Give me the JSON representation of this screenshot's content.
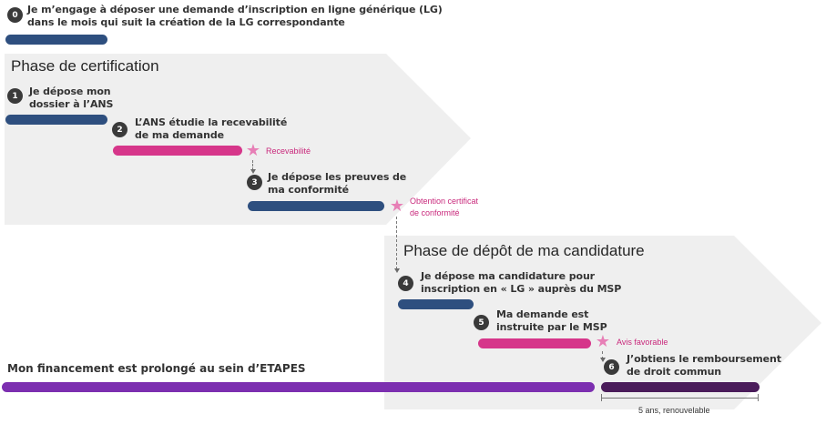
{
  "colors": {
    "phase_background": "#efefef",
    "step_bar": "#2e4f7f",
    "review_bar": "#d6368a",
    "financing_bar": "#7c2fb0",
    "reimbursement_bar": "#4a1c5a",
    "milestone_star": "#e77fb6",
    "milestone_text": "#c9297c"
  },
  "step0": {
    "number": "0",
    "line1": "Je m’engage à déposer une demande d’inscription en ligne générique (LG)",
    "line2": "dans le mois qui suit la création de la LG correspondante"
  },
  "phase_certification": {
    "title": "Phase de certification",
    "step1": {
      "number": "1",
      "line1": "Je dépose mon",
      "line2": "dossier à l’ANS"
    },
    "step2": {
      "number": "2",
      "line1": "L’ANS étudie la recevabilité",
      "line2": "de ma demande"
    },
    "milestone_recevabilite": "Recevabilité",
    "step3": {
      "number": "3",
      "line1": "Je dépose les preuves de",
      "line2": "ma conformité"
    },
    "milestone_certificat": {
      "line1": "Obtention certificat",
      "line2": "de conformité"
    }
  },
  "phase_candidature": {
    "title": "Phase de dépôt de ma candidature",
    "step4": {
      "number": "4",
      "line1": "Je dépose ma candidature pour",
      "line2": "inscription en « LG » auprès du MSP"
    },
    "step5": {
      "number": "5",
      "line1": "Ma demande est",
      "line2": "instruite par le MSP"
    },
    "milestone_avis": "Avis favorable",
    "step6": {
      "number": "6",
      "line1": "J’obtiens le remboursement",
      "line2": "de droit commun"
    }
  },
  "financing": {
    "label": "Mon financement est prolongé au sein d’ETAPES"
  },
  "duration": {
    "label": "5 ans, renouvelable"
  },
  "icons": {
    "milestone": "star-icon",
    "flow": "dashed-arrow-icon"
  }
}
